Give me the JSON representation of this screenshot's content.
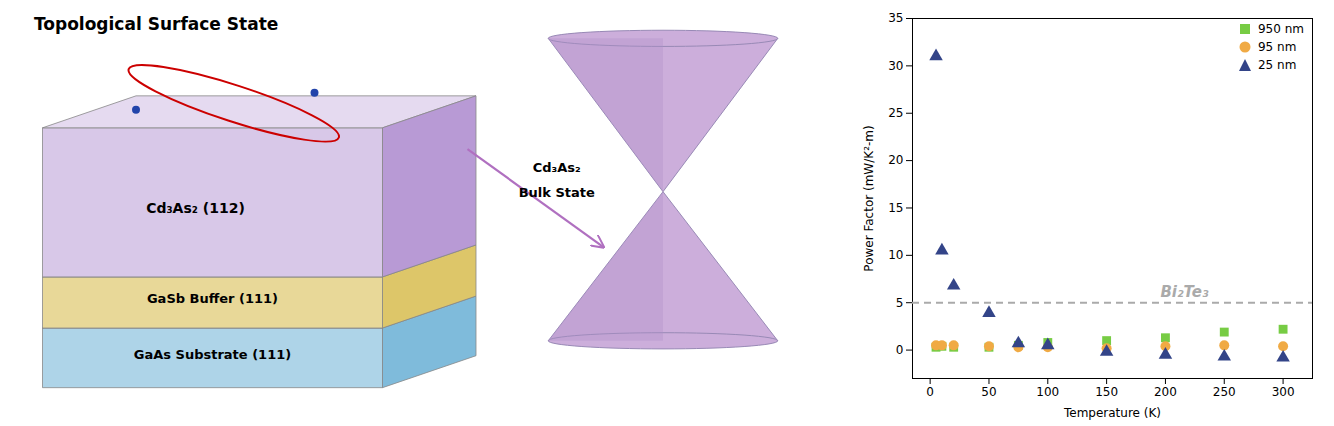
{
  "chart_data": {
    "type": "scatter",
    "title": "Topological Surface State",
    "xlabel": "Temperature (K)",
    "ylabel": "Power Factor (mW/K²-m)",
    "xlim": [
      -15,
      325
    ],
    "xticks": [
      0,
      50,
      100,
      150,
      200,
      250,
      300
    ],
    "ylim": [
      -3,
      35
    ],
    "yticks": [
      0,
      5,
      10,
      15,
      20,
      25,
      30,
      35
    ],
    "legend": "upper right",
    "x": [
      5,
      10,
      20,
      50,
      75,
      100,
      150,
      200,
      250,
      300
    ],
    "series": [
      {
        "name": "950 nm",
        "color": "#77cc44",
        "marker": "square",
        "values": [
          0.3,
          0.4,
          0.3,
          0.3,
          0.5,
          0.8,
          1.0,
          1.3,
          1.9,
          2.2
        ]
      },
      {
        "name": "95 nm",
        "color": "#f0aa44",
        "marker": "circle",
        "values": [
          0.5,
          0.5,
          0.5,
          0.4,
          0.3,
          0.3,
          0.2,
          0.4,
          0.5,
          0.4
        ]
      },
      {
        "name": "25 nm",
        "color": "#334488",
        "marker": "triangle",
        "values": [
          31.0,
          10.5,
          6.8,
          3.9,
          0.7,
          0.5,
          -0.2,
          -0.5,
          -0.7,
          -0.8
        ]
      }
    ],
    "annotations": [
      {
        "text": "Bi₂Te₃",
        "y": 5,
        "color": "#aaaaaa",
        "line_style": "dashed"
      },
      {
        "text": "Cd₃As₂ (112)",
        "color": "#d8c8e8"
      },
      {
        "text": "GaSb Buffer (111)",
        "color": "#e8d898"
      },
      {
        "text": "GaAs Substrate (111)",
        "color": "#aed4e8"
      },
      {
        "text": "Cd₃As₂",
        "color": "#b070c0"
      },
      {
        "text": "Bulk State",
        "color": "#b070c0"
      }
    ]
  }
}
